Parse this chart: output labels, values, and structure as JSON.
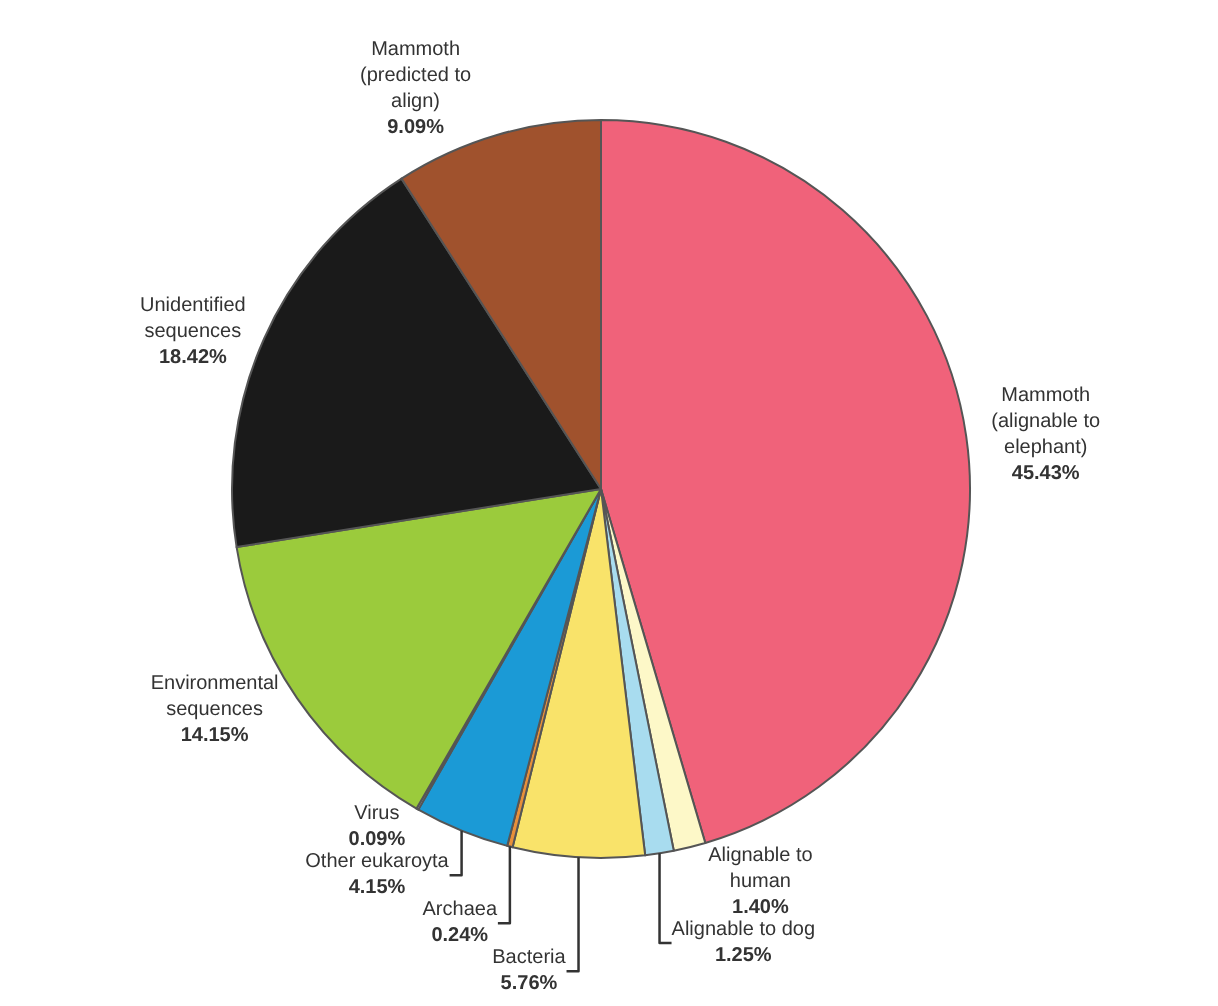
{
  "chart_data": {
    "type": "pie",
    "categories": [
      "Mammoth (alignable to elephant)",
      "Alignable to human",
      "Alignable to dog",
      "Bacteria",
      "Archaea",
      "Other eukaroyta",
      "Virus",
      "Environmental sequences",
      "Unidentified sequences",
      "Mammoth (predicted to align)"
    ],
    "values": [
      45.43,
      1.4,
      1.25,
      5.76,
      0.24,
      4.15,
      0.09,
      14.15,
      18.42,
      9.09
    ],
    "value_labels": [
      "45.43%",
      "1.40%",
      "1.25%",
      "5.76%",
      "0.24%",
      "4.15%",
      "0.09%",
      "14.15%",
      "18.42%",
      "9.09%"
    ],
    "colors": [
      "#f0627a",
      "#fdf8c8",
      "#a8dcef",
      "#f9e36a",
      "#e8903a",
      "#1b9ad6",
      "#ffffff",
      "#9bcb3c",
      "#1a1a1a",
      "#a0522d"
    ],
    "legend": false
  }
}
